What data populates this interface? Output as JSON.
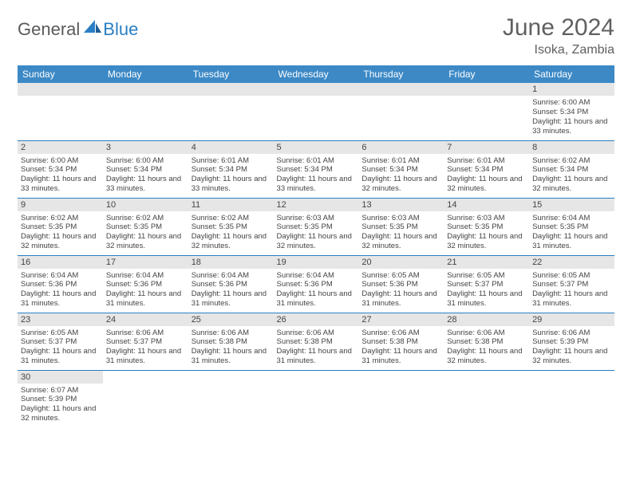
{
  "brand": {
    "part1": "General",
    "part2": "Blue",
    "accent": "#2a7fc4"
  },
  "title": "June 2024",
  "location": "Isoka, Zambia",
  "colors": {
    "header_bg": "#3c89c6",
    "header_text": "#ffffff",
    "daynum_bg": "#e6e6e6",
    "border": "#2a7fc4",
    "text": "#444444",
    "title_text": "#606060"
  },
  "weekdays": [
    "Sunday",
    "Monday",
    "Tuesday",
    "Wednesday",
    "Thursday",
    "Friday",
    "Saturday"
  ],
  "first_weekday_index": 6,
  "days": [
    {
      "n": 1,
      "sunrise": "6:00 AM",
      "sunset": "5:34 PM",
      "daylight": "11 hours and 33 minutes."
    },
    {
      "n": 2,
      "sunrise": "6:00 AM",
      "sunset": "5:34 PM",
      "daylight": "11 hours and 33 minutes."
    },
    {
      "n": 3,
      "sunrise": "6:00 AM",
      "sunset": "5:34 PM",
      "daylight": "11 hours and 33 minutes."
    },
    {
      "n": 4,
      "sunrise": "6:01 AM",
      "sunset": "5:34 PM",
      "daylight": "11 hours and 33 minutes."
    },
    {
      "n": 5,
      "sunrise": "6:01 AM",
      "sunset": "5:34 PM",
      "daylight": "11 hours and 33 minutes."
    },
    {
      "n": 6,
      "sunrise": "6:01 AM",
      "sunset": "5:34 PM",
      "daylight": "11 hours and 32 minutes."
    },
    {
      "n": 7,
      "sunrise": "6:01 AM",
      "sunset": "5:34 PM",
      "daylight": "11 hours and 32 minutes."
    },
    {
      "n": 8,
      "sunrise": "6:02 AM",
      "sunset": "5:34 PM",
      "daylight": "11 hours and 32 minutes."
    },
    {
      "n": 9,
      "sunrise": "6:02 AM",
      "sunset": "5:35 PM",
      "daylight": "11 hours and 32 minutes."
    },
    {
      "n": 10,
      "sunrise": "6:02 AM",
      "sunset": "5:35 PM",
      "daylight": "11 hours and 32 minutes."
    },
    {
      "n": 11,
      "sunrise": "6:02 AM",
      "sunset": "5:35 PM",
      "daylight": "11 hours and 32 minutes."
    },
    {
      "n": 12,
      "sunrise": "6:03 AM",
      "sunset": "5:35 PM",
      "daylight": "11 hours and 32 minutes."
    },
    {
      "n": 13,
      "sunrise": "6:03 AM",
      "sunset": "5:35 PM",
      "daylight": "11 hours and 32 minutes."
    },
    {
      "n": 14,
      "sunrise": "6:03 AM",
      "sunset": "5:35 PM",
      "daylight": "11 hours and 32 minutes."
    },
    {
      "n": 15,
      "sunrise": "6:04 AM",
      "sunset": "5:35 PM",
      "daylight": "11 hours and 31 minutes."
    },
    {
      "n": 16,
      "sunrise": "6:04 AM",
      "sunset": "5:36 PM",
      "daylight": "11 hours and 31 minutes."
    },
    {
      "n": 17,
      "sunrise": "6:04 AM",
      "sunset": "5:36 PM",
      "daylight": "11 hours and 31 minutes."
    },
    {
      "n": 18,
      "sunrise": "6:04 AM",
      "sunset": "5:36 PM",
      "daylight": "11 hours and 31 minutes."
    },
    {
      "n": 19,
      "sunrise": "6:04 AM",
      "sunset": "5:36 PM",
      "daylight": "11 hours and 31 minutes."
    },
    {
      "n": 20,
      "sunrise": "6:05 AM",
      "sunset": "5:36 PM",
      "daylight": "11 hours and 31 minutes."
    },
    {
      "n": 21,
      "sunrise": "6:05 AM",
      "sunset": "5:37 PM",
      "daylight": "11 hours and 31 minutes."
    },
    {
      "n": 22,
      "sunrise": "6:05 AM",
      "sunset": "5:37 PM",
      "daylight": "11 hours and 31 minutes."
    },
    {
      "n": 23,
      "sunrise": "6:05 AM",
      "sunset": "5:37 PM",
      "daylight": "11 hours and 31 minutes."
    },
    {
      "n": 24,
      "sunrise": "6:06 AM",
      "sunset": "5:37 PM",
      "daylight": "11 hours and 31 minutes."
    },
    {
      "n": 25,
      "sunrise": "6:06 AM",
      "sunset": "5:38 PM",
      "daylight": "11 hours and 31 minutes."
    },
    {
      "n": 26,
      "sunrise": "6:06 AM",
      "sunset": "5:38 PM",
      "daylight": "11 hours and 31 minutes."
    },
    {
      "n": 27,
      "sunrise": "6:06 AM",
      "sunset": "5:38 PM",
      "daylight": "11 hours and 31 minutes."
    },
    {
      "n": 28,
      "sunrise": "6:06 AM",
      "sunset": "5:38 PM",
      "daylight": "11 hours and 32 minutes."
    },
    {
      "n": 29,
      "sunrise": "6:06 AM",
      "sunset": "5:39 PM",
      "daylight": "11 hours and 32 minutes."
    },
    {
      "n": 30,
      "sunrise": "6:07 AM",
      "sunset": "5:39 PM",
      "daylight": "11 hours and 32 minutes."
    }
  ],
  "labels": {
    "sunrise": "Sunrise:",
    "sunset": "Sunset:",
    "daylight": "Daylight:"
  }
}
